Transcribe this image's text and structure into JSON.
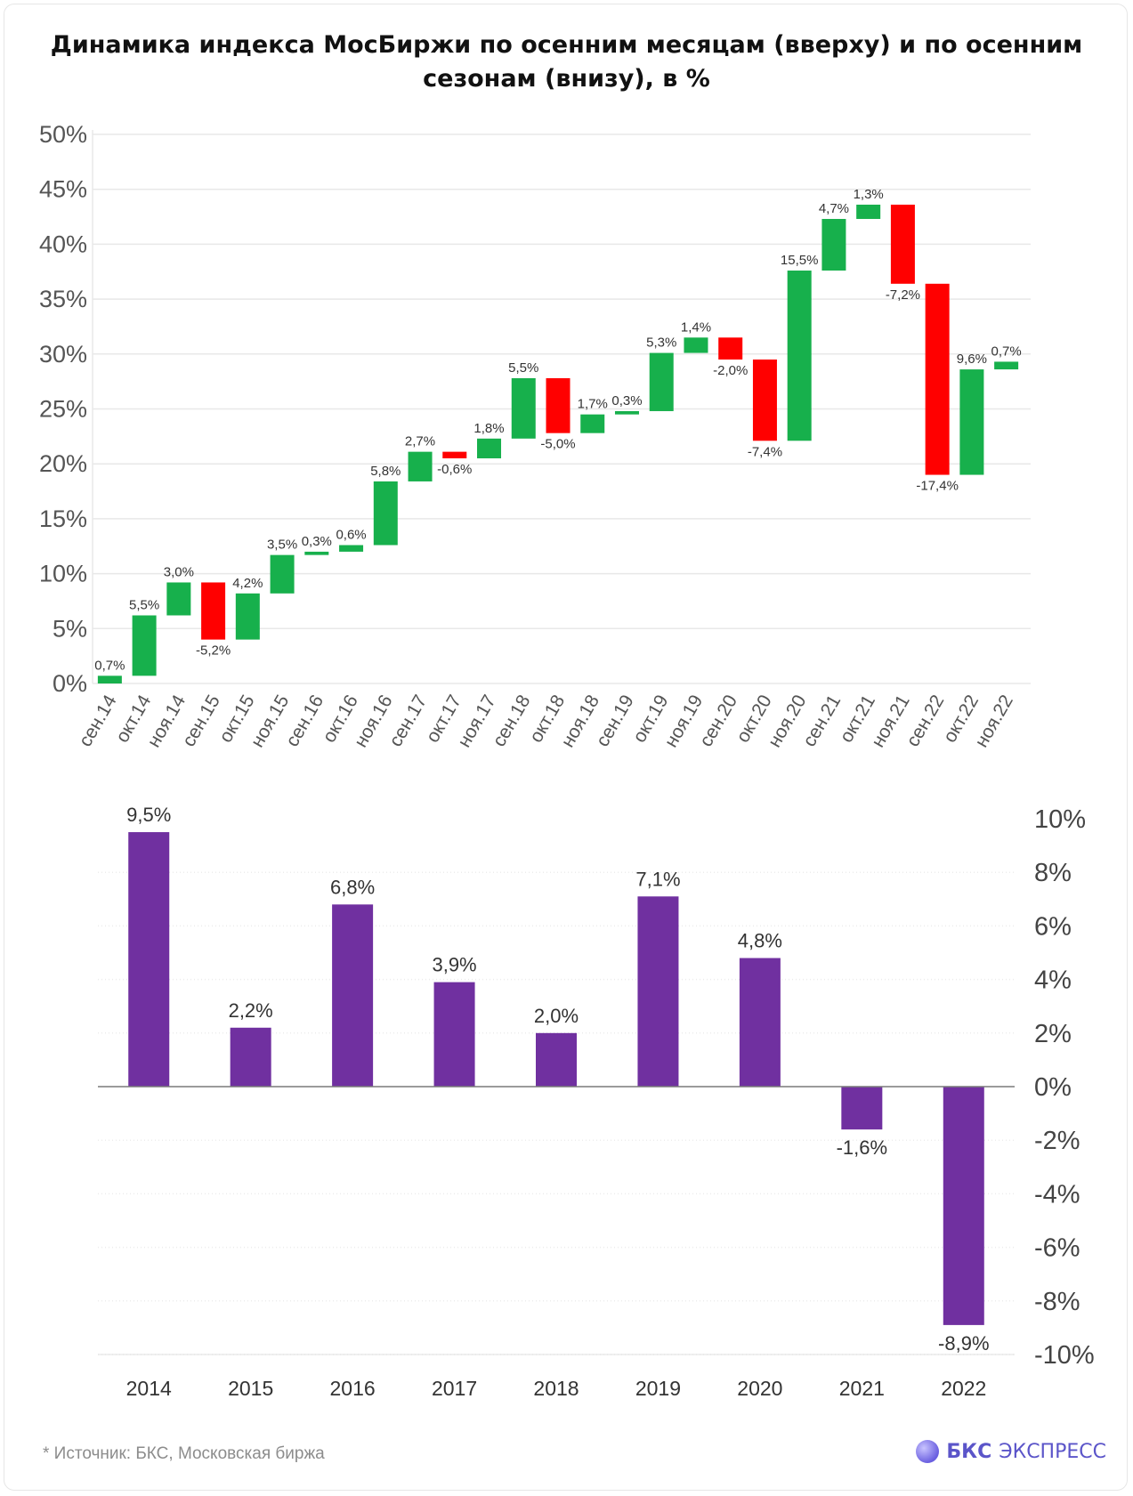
{
  "title": "Динамика индекса МосБиржи по осенним месяцам (вверху) и по осенним сезонам (внизу), в %",
  "footnote": "*  Источник: БКС, Московская биржа",
  "brand": {
    "name": "БКС",
    "suffix": "ЭКСПРЕСС",
    "icon": "bks-logo-icon"
  },
  "colors": {
    "up": "#17b04c",
    "down": "#ff0000",
    "season": "#7030a0",
    "grid": "#e8e8e8",
    "axis_text": "#555555",
    "label_text": "#333333"
  },
  "chart_data": [
    {
      "type": "waterfall",
      "yticks": [
        "50%",
        "45%",
        "40%",
        "35%",
        "30%",
        "25%",
        "20%",
        "15%",
        "10%",
        "5%",
        "0%"
      ],
      "ylim": [
        0,
        50
      ],
      "grid": true,
      "categories": [
        "сен.14",
        "окт.14",
        "ноя.14",
        "сен.15",
        "окт.15",
        "ноя.15",
        "сен.16",
        "окт.16",
        "ноя.16",
        "сен.17",
        "окт.17",
        "ноя.17",
        "сен.18",
        "окт.18",
        "ноя.18",
        "сен.19",
        "окт.19",
        "ноя.19",
        "сен.20",
        "окт.20",
        "ноя.20",
        "сен.21",
        "окт.21",
        "ноя.21",
        "сен.22",
        "окт.22",
        "ноя.22"
      ],
      "values": [
        0.7,
        5.5,
        3.0,
        -5.2,
        4.2,
        3.5,
        0.3,
        0.6,
        5.8,
        2.7,
        -0.6,
        1.8,
        5.5,
        -5.0,
        1.7,
        0.3,
        5.3,
        1.4,
        -2.0,
        -7.4,
        15.5,
        4.7,
        1.3,
        -7.2,
        -17.4,
        9.6,
        0.7
      ],
      "labels": [
        "0,7%",
        "5,5%",
        "3,0%",
        "-5,2%",
        "4,2%",
        "3,5%",
        "0,3%",
        "0,6%",
        "5,8%",
        "2,7%",
        "-0,6%",
        "1,8%",
        "5,5%",
        "-5,0%",
        "1,7%",
        "0,3%",
        "5,3%",
        "1,4%",
        "-2,0%",
        "-7,4%",
        "15,5%",
        "4,7%",
        "1,3%",
        "-7,2%",
        "-17,4%",
        "9,6%",
        "0,7%"
      ]
    },
    {
      "type": "bar",
      "categories": [
        "2014",
        "2015",
        "2016",
        "2017",
        "2018",
        "2019",
        "2020",
        "2021",
        "2022"
      ],
      "values": [
        9.5,
        2.2,
        6.8,
        3.9,
        2.0,
        7.1,
        4.8,
        -1.6,
        -8.9
      ],
      "labels": [
        "9,5%",
        "2,2%",
        "6,8%",
        "3,9%",
        "2,0%",
        "7,1%",
        "4,8%",
        "-1,6%",
        "-8,9%"
      ],
      "yticks": [
        "10%",
        "8%",
        "6%",
        "4%",
        "2%",
        "0%",
        "-2%",
        "-4%",
        "-6%",
        "-8%",
        "-10%"
      ],
      "ylim": [
        -10,
        10
      ],
      "yaxis_side": "right",
      "grid": true
    }
  ]
}
